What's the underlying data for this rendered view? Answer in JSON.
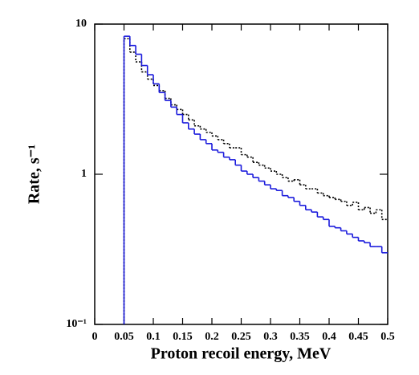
{
  "chart_data": {
    "type": "histogram",
    "x_label": "Proton recoil energy, MeV",
    "y_label": "Rate, s⁻¹",
    "xlim": [
      0,
      0.5
    ],
    "ylim": [
      0.1,
      10
    ],
    "log_y": true,
    "xticks": [
      0,
      0.05,
      0.1,
      0.15,
      0.2,
      0.25,
      0.3,
      0.35,
      0.4,
      0.45,
      0.5
    ],
    "yticks": [
      {
        "value": 0.1,
        "label": "10⁻¹"
      },
      1,
      10
    ],
    "bins": [
      0.05,
      0.06,
      0.07,
      0.08,
      0.09,
      0.1,
      0.11,
      0.12,
      0.13,
      0.14,
      0.15,
      0.16,
      0.17,
      0.18,
      0.19,
      0.2,
      0.21,
      0.22,
      0.23,
      0.24,
      0.25,
      0.26,
      0.27,
      0.28,
      0.29,
      0.3,
      0.31,
      0.32,
      0.33,
      0.34,
      0.35,
      0.36,
      0.37,
      0.38,
      0.39,
      0.4,
      0.41,
      0.42,
      0.43,
      0.44,
      0.45,
      0.46,
      0.47,
      0.48,
      0.49,
      0.5
    ],
    "series": [
      {
        "color": "#000000",
        "dashed": true,
        "values": [
          8.0,
          6.5,
          5.6,
          4.8,
          4.3,
          3.9,
          3.6,
          3.2,
          2.9,
          2.7,
          2.5,
          2.3,
          2.1,
          2.0,
          1.9,
          1.8,
          1.7,
          1.6,
          1.5,
          1.5,
          1.35,
          1.3,
          1.2,
          1.15,
          1.1,
          1.05,
          1.0,
          0.95,
          0.9,
          0.92,
          0.85,
          0.8,
          0.8,
          0.75,
          0.72,
          0.7,
          0.68,
          0.66,
          0.62,
          0.65,
          0.58,
          0.6,
          0.55,
          0.58,
          0.5
        ]
      },
      {
        "color": "#1a1adc",
        "dashed": false,
        "values": [
          8.3,
          7.2,
          6.3,
          5.3,
          4.6,
          4.0,
          3.5,
          3.1,
          2.8,
          2.5,
          2.2,
          2.0,
          1.85,
          1.7,
          1.6,
          1.45,
          1.4,
          1.3,
          1.25,
          1.15,
          1.05,
          1.0,
          0.95,
          0.9,
          0.85,
          0.8,
          0.78,
          0.72,
          0.7,
          0.66,
          0.62,
          0.58,
          0.56,
          0.52,
          0.5,
          0.45,
          0.44,
          0.42,
          0.4,
          0.38,
          0.36,
          0.35,
          0.33,
          0.33,
          0.3
        ]
      }
    ]
  }
}
